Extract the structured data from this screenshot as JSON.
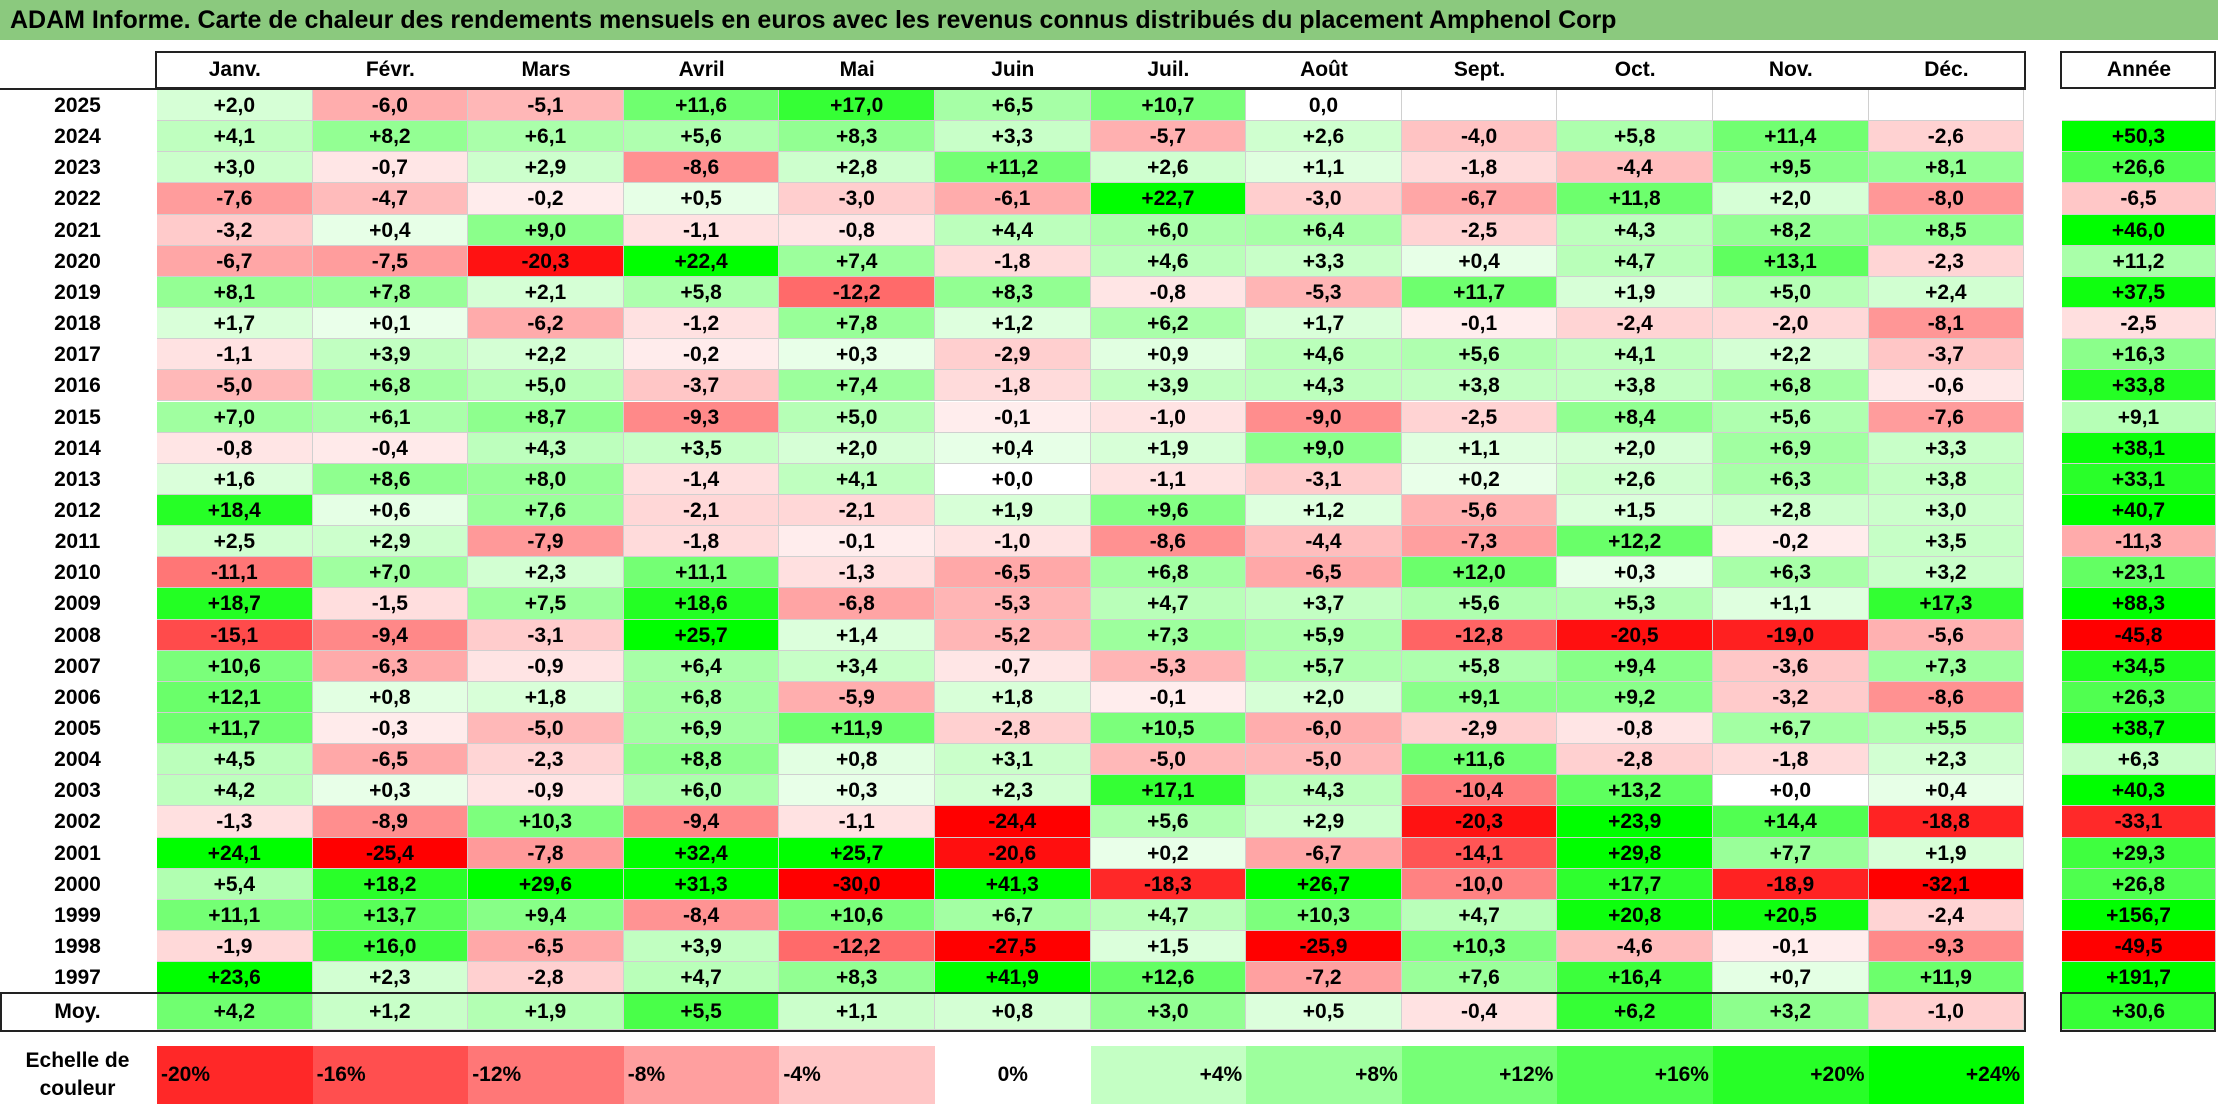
{
  "title": "ADAM Informe. Carte de chaleur des rendements mensuels en euros avec les revenus connus distribués du placement Amphenol Corp",
  "chart_data": {
    "type": "heatmap",
    "title": "ADAM Informe. Carte de chaleur des rendements mensuels en euros avec les revenus connus distribués du placement Amphenol Corp",
    "columns": [
      "Janv.",
      "Févr.",
      "Mars",
      "Avril",
      "Mai",
      "Juin",
      "Juil.",
      "Août",
      "Sept.",
      "Oct.",
      "Nov.",
      "Déc."
    ],
    "year_header": "Année",
    "rows": [
      {
        "year": "2025",
        "values": [
          "+2,0",
          "-6,0",
          "-5,1",
          "+11,6",
          "+17,0",
          "+6,5",
          "+10,7",
          "0,0",
          "",
          "",
          "",
          ""
        ],
        "annual": ""
      },
      {
        "year": "2024",
        "values": [
          "+4,1",
          "+8,2",
          "+6,1",
          "+5,6",
          "+8,3",
          "+3,3",
          "-5,7",
          "+2,6",
          "-4,0",
          "+5,8",
          "+11,4",
          "-2,6"
        ],
        "annual": "+50,3"
      },
      {
        "year": "2023",
        "values": [
          "+3,0",
          "-0,7",
          "+2,9",
          "-8,6",
          "+2,8",
          "+11,2",
          "+2,6",
          "+1,1",
          "-1,8",
          "-4,4",
          "+9,5",
          "+8,1"
        ],
        "annual": "+26,6"
      },
      {
        "year": "2022",
        "values": [
          "-7,6",
          "-4,7",
          "-0,2",
          "+0,5",
          "-3,0",
          "-6,1",
          "+22,7",
          "-3,0",
          "-6,7",
          "+11,8",
          "+2,0",
          "-8,0"
        ],
        "annual": "-6,5"
      },
      {
        "year": "2021",
        "values": [
          "-3,2",
          "+0,4",
          "+9,0",
          "-1,1",
          "-0,8",
          "+4,4",
          "+6,0",
          "+6,4",
          "-2,5",
          "+4,3",
          "+8,2",
          "+8,5"
        ],
        "annual": "+46,0"
      },
      {
        "year": "2020",
        "values": [
          "-6,7",
          "-7,5",
          "-20,3",
          "+22,4",
          "+7,4",
          "-1,8",
          "+4,6",
          "+3,3",
          "+0,4",
          "+4,7",
          "+13,1",
          "-2,3"
        ],
        "annual": "+11,2"
      },
      {
        "year": "2019",
        "values": [
          "+8,1",
          "+7,8",
          "+2,1",
          "+5,8",
          "-12,2",
          "+8,3",
          "-0,8",
          "-5,3",
          "+11,7",
          "+1,9",
          "+5,0",
          "+2,4"
        ],
        "annual": "+37,5"
      },
      {
        "year": "2018",
        "values": [
          "+1,7",
          "+0,1",
          "-6,2",
          "-1,2",
          "+7,8",
          "+1,2",
          "+6,2",
          "+1,7",
          "-0,1",
          "-2,4",
          "-2,0",
          "-8,1"
        ],
        "annual": "-2,5"
      },
      {
        "year": "2017",
        "values": [
          "-1,1",
          "+3,9",
          "+2,2",
          "-0,2",
          "+0,3",
          "-2,9",
          "+0,9",
          "+4,6",
          "+5,6",
          "+4,1",
          "+2,2",
          "-3,7"
        ],
        "annual": "+16,3"
      },
      {
        "year": "2016",
        "values": [
          "-5,0",
          "+6,8",
          "+5,0",
          "-3,7",
          "+7,4",
          "-1,8",
          "+3,9",
          "+4,3",
          "+3,8",
          "+3,8",
          "+6,8",
          "-0,6"
        ],
        "annual": "+33,8"
      },
      {
        "year": "2015",
        "values": [
          "+7,0",
          "+6,1",
          "+8,7",
          "-9,3",
          "+5,0",
          "-0,1",
          "-1,0",
          "-9,0",
          "-2,5",
          "+8,4",
          "+5,6",
          "-7,6"
        ],
        "annual": "+9,1"
      },
      {
        "year": "2014",
        "values": [
          "-0,8",
          "-0,4",
          "+4,3",
          "+3,5",
          "+2,0",
          "+0,4",
          "+1,9",
          "+9,0",
          "+1,1",
          "+2,0",
          "+6,9",
          "+3,3"
        ],
        "annual": "+38,1"
      },
      {
        "year": "2013",
        "values": [
          "+1,6",
          "+8,6",
          "+8,0",
          "-1,4",
          "+4,1",
          "+0,0",
          "-1,1",
          "-3,1",
          "+0,2",
          "+2,6",
          "+6,3",
          "+3,8"
        ],
        "annual": "+33,1"
      },
      {
        "year": "2012",
        "values": [
          "+18,4",
          "+0,6",
          "+7,6",
          "-2,1",
          "-2,1",
          "+1,9",
          "+9,6",
          "+1,2",
          "-5,6",
          "+1,5",
          "+2,8",
          "+3,0"
        ],
        "annual": "+40,7"
      },
      {
        "year": "2011",
        "values": [
          "+2,5",
          "+2,9",
          "-7,9",
          "-1,8",
          "-0,1",
          "-1,0",
          "-8,6",
          "-4,4",
          "-7,3",
          "+12,2",
          "-0,2",
          "+3,5"
        ],
        "annual": "-11,3"
      },
      {
        "year": "2010",
        "values": [
          "-11,1",
          "+7,0",
          "+2,3",
          "+11,1",
          "-1,3",
          "-6,5",
          "+6,8",
          "-6,5",
          "+12,0",
          "+0,3",
          "+6,3",
          "+3,2"
        ],
        "annual": "+23,1"
      },
      {
        "year": "2009",
        "values": [
          "+18,7",
          "-1,5",
          "+7,5",
          "+18,6",
          "-6,8",
          "-5,3",
          "+4,7",
          "+3,7",
          "+5,6",
          "+5,3",
          "+1,1",
          "+17,3"
        ],
        "annual": "+88,3"
      },
      {
        "year": "2008",
        "values": [
          "-15,1",
          "-9,4",
          "-3,1",
          "+25,7",
          "+1,4",
          "-5,2",
          "+7,3",
          "+5,9",
          "-12,8",
          "-20,5",
          "-19,0",
          "-5,6"
        ],
        "annual": "-45,8"
      },
      {
        "year": "2007",
        "values": [
          "+10,6",
          "-6,3",
          "-0,9",
          "+6,4",
          "+3,4",
          "-0,7",
          "-5,3",
          "+5,7",
          "+5,8",
          "+9,4",
          "-3,6",
          "+7,3"
        ],
        "annual": "+34,5"
      },
      {
        "year": "2006",
        "values": [
          "+12,1",
          "+0,8",
          "+1,8",
          "+6,8",
          "-5,9",
          "+1,8",
          "-0,1",
          "+2,0",
          "+9,1",
          "+9,2",
          "-3,2",
          "-8,6"
        ],
        "annual": "+26,3"
      },
      {
        "year": "2005",
        "values": [
          "+11,7",
          "-0,3",
          "-5,0",
          "+6,9",
          "+11,9",
          "-2,8",
          "+10,5",
          "-6,0",
          "-2,9",
          "-0,8",
          "+6,7",
          "+5,5"
        ],
        "annual": "+38,7"
      },
      {
        "year": "2004",
        "values": [
          "+4,5",
          "-6,5",
          "-2,3",
          "+8,8",
          "+0,8",
          "+3,1",
          "-5,0",
          "-5,0",
          "+11,6",
          "-2,8",
          "-1,8",
          "+2,3"
        ],
        "annual": "+6,3"
      },
      {
        "year": "2003",
        "values": [
          "+4,2",
          "+0,3",
          "-0,9",
          "+6,0",
          "+0,3",
          "+2,3",
          "+17,1",
          "+4,3",
          "-10,4",
          "+13,2",
          "+0,0",
          "+0,4"
        ],
        "annual": "+40,3"
      },
      {
        "year": "2002",
        "values": [
          "-1,3",
          "-8,9",
          "+10,3",
          "-9,4",
          "-1,1",
          "-24,4",
          "+5,6",
          "+2,9",
          "-20,3",
          "+23,9",
          "+14,4",
          "-18,8"
        ],
        "annual": "-33,1"
      },
      {
        "year": "2001",
        "values": [
          "+24,1",
          "-25,4",
          "-7,8",
          "+32,4",
          "+25,7",
          "-20,6",
          "+0,2",
          "-6,7",
          "-14,1",
          "+29,8",
          "+7,7",
          "+1,9"
        ],
        "annual": "+29,3"
      },
      {
        "year": "2000",
        "values": [
          "+5,4",
          "+18,2",
          "+29,6",
          "+31,3",
          "-30,0",
          "+41,3",
          "-18,3",
          "+26,7",
          "-10,0",
          "+17,7",
          "-18,9",
          "-32,1"
        ],
        "annual": "+26,8"
      },
      {
        "year": "1999",
        "values": [
          "+11,1",
          "+13,7",
          "+9,4",
          "-8,4",
          "+10,6",
          "+6,7",
          "+4,7",
          "+10,3",
          "+4,7",
          "+20,8",
          "+20,5",
          "-2,4"
        ],
        "annual": "+156,7"
      },
      {
        "year": "1998",
        "values": [
          "-1,9",
          "+16,0",
          "-6,5",
          "+3,9",
          "-12,2",
          "-27,5",
          "+1,5",
          "-25,9",
          "+10,3",
          "-4,6",
          "-0,1",
          "-9,3"
        ],
        "annual": "-49,5"
      },
      {
        "year": "1997",
        "values": [
          "+23,6",
          "+2,3",
          "-2,8",
          "+4,7",
          "+8,3",
          "+41,9",
          "+12,6",
          "-7,2",
          "+7,6",
          "+16,4",
          "+0,7",
          "+11,9"
        ],
        "annual": "+191,7"
      }
    ],
    "average": {
      "label": "Moy.",
      "values": [
        "+4,2",
        "+1,2",
        "+1,9",
        "+5,5",
        "+1,1",
        "+0,8",
        "+3,0",
        "+0,5",
        "-0,4",
        "+6,2",
        "+3,2",
        "-1,0"
      ],
      "annual": "+30,6"
    },
    "scale": {
      "label": "Echelle de couleur",
      "steps": [
        {
          "label": "-20%",
          "value": -20
        },
        {
          "label": "-16%",
          "value": -16
        },
        {
          "label": "-12%",
          "value": -12
        },
        {
          "label": "-8%",
          "value": -8
        },
        {
          "label": "-4%",
          "value": -4
        },
        {
          "label": "0%",
          "value": 0
        },
        {
          "label": "+4%",
          "value": 4
        },
        {
          "label": "+8%",
          "value": 8
        },
        {
          "label": "+12%",
          "value": 12
        },
        {
          "label": "+16%",
          "value": 16
        },
        {
          "label": "+20%",
          "value": 20
        },
        {
          "label": "+24%",
          "value": 24
        }
      ]
    },
    "colors": {
      "negative_max": "#ff0000",
      "neutral": "#ffffff",
      "positive_max": "#00ff00"
    }
  }
}
